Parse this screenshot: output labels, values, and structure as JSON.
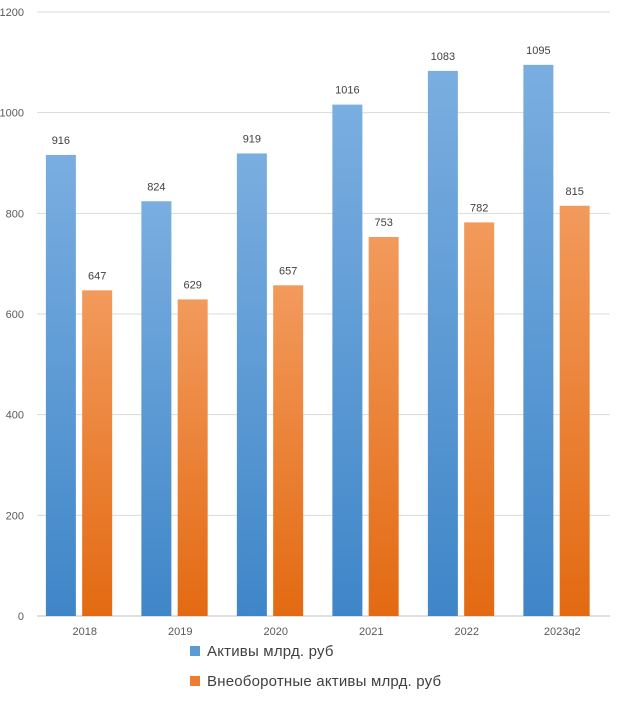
{
  "chart_data": {
    "type": "bar",
    "categories": [
      "2018",
      "2019",
      "2020",
      "2021",
      "2022",
      "2023q2"
    ],
    "series": [
      {
        "name": "Активы млрд. руб",
        "values": [
          916,
          824,
          919,
          1016,
          1083,
          1095
        ],
        "color": "#5B9BD5"
      },
      {
        "name": "Внеоборотные активы млрд. руб",
        "values": [
          647,
          629,
          657,
          753,
          782,
          815
        ],
        "color": "#ED7D31"
      }
    ],
    "data_labels": [
      [
        "916",
        "824",
        "919",
        "1016",
        "1083",
        "1095"
      ],
      [
        "647",
        "629",
        "657",
        "753",
        "782",
        "815"
      ]
    ],
    "y_ticks": [
      "0",
      "200",
      "400",
      "600",
      "800",
      "1000",
      "1200"
    ],
    "ylim": [
      0,
      1200
    ],
    "grid": true,
    "legend_position": "bottom"
  }
}
